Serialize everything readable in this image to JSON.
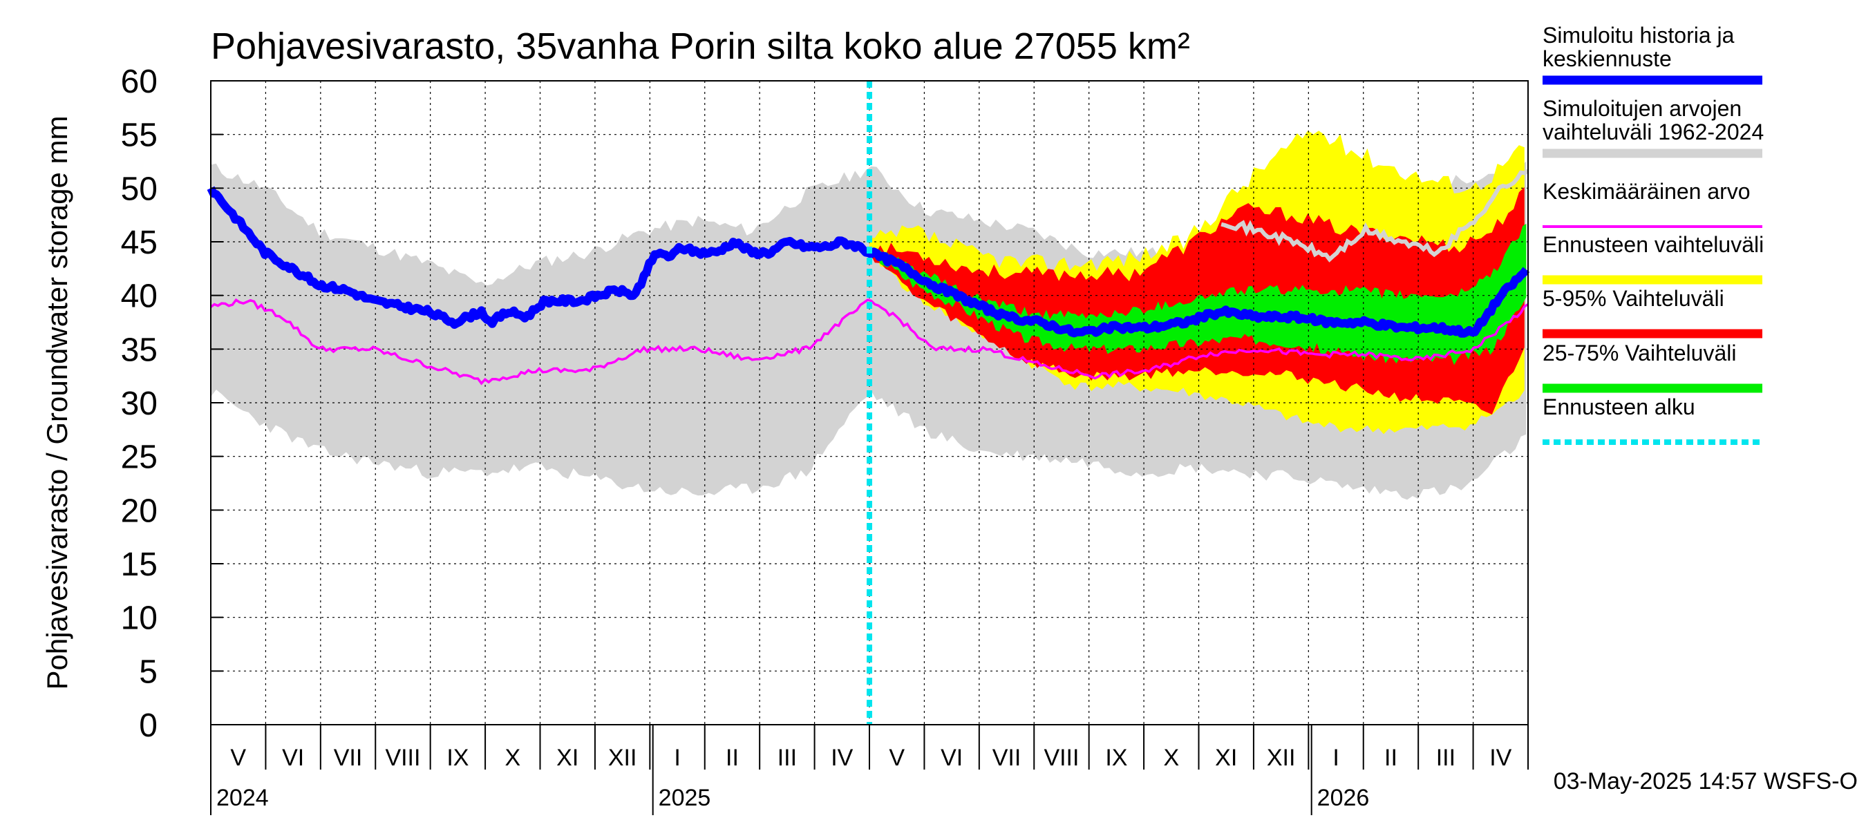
{
  "chart_data": {
    "type": "area",
    "title": "Pohjavesivarasto, 35vanha Porin silta koko alue 27055 km²",
    "ylabel": "Pohjavesivarasto / Groundwater storage   mm",
    "ylim": [
      0,
      60
    ],
    "yticks": [
      0,
      5,
      10,
      15,
      20,
      25,
      30,
      35,
      40,
      45,
      50,
      55,
      60
    ],
    "xlim_days": [
      0,
      730
    ],
    "month_labels": [
      "V",
      "VI",
      "VII",
      "VIII",
      "IX",
      "X",
      "XI",
      "XII",
      "I",
      "II",
      "III",
      "IV",
      "V",
      "VI",
      "VII",
      "VIII",
      "IX",
      "X",
      "XI",
      "XII",
      "I",
      "II",
      "III",
      "IV"
    ],
    "year_labels": [
      {
        "text": "2024",
        "day": 0
      },
      {
        "text": "2025",
        "day": 245
      },
      {
        "text": "2026",
        "day": 610
      }
    ],
    "forecast_start_day": 365,
    "timestamp": "03-May-2025 14:57 WSFS-O",
    "legend": [
      {
        "label": [
          "Simuloitu historia ja",
          "keskiennuste"
        ],
        "color": "#0000ff",
        "style": "thick"
      },
      {
        "label": [
          "Simuloitujen arvojen",
          "vaihteluväli 1962-2024"
        ],
        "color": "#d3d3d3",
        "style": "thick"
      },
      {
        "label": [
          "Keskimääräinen arvo"
        ],
        "color": "#ff00ff",
        "style": "thin"
      },
      {
        "label": [
          "Ennusteen vaihteluväli"
        ],
        "color": "#ffff00",
        "style": "thick"
      },
      {
        "label": [
          "5-95% Vaihteluväli"
        ],
        "color": "#ff0000",
        "style": "thick"
      },
      {
        "label": [
          "25-75% Vaihteluväli"
        ],
        "color": "#00ee00",
        "style": "thick"
      },
      {
        "label": [
          "Ennusteen alku"
        ],
        "color": "#00e5ee",
        "style": "dashed"
      }
    ],
    "series": {
      "hist_range": {
        "name": "Simuloitujen arvojen vaihteluväli 1962-2024",
        "x": [
          0,
          30,
          60,
          90,
          120,
          150,
          180,
          210,
          240,
          270,
          300,
          330,
          360,
          365,
          395,
          425,
          455,
          485,
          515,
          545,
          575,
          605,
          635,
          665,
          695,
          730
        ],
        "upper": [
          52,
          50,
          46,
          44.5,
          43,
          41,
          43,
          44,
          46,
          47,
          46,
          49.5,
          51.5,
          52,
          48,
          47,
          46,
          44,
          44,
          44,
          46,
          47,
          48,
          49,
          51,
          52
        ],
        "lower": [
          31,
          28,
          25.5,
          24.5,
          23.5,
          23.5,
          24,
          23,
          22,
          21.5,
          22,
          23.5,
          30,
          31,
          27.5,
          25.5,
          25,
          24.5,
          23.5,
          24,
          23.5,
          23,
          22,
          21.5,
          22,
          27
        ]
      },
      "mean": {
        "name": "Keskimääräinen arvo",
        "x": [
          0,
          20,
          40,
          60,
          90,
          120,
          150,
          180,
          210,
          240,
          270,
          300,
          330,
          345,
          365,
          380,
          400,
          430,
          460,
          490,
          520,
          550,
          580,
          610,
          640,
          670,
          700,
          730
        ],
        "values": [
          39,
          39.5,
          38,
          35,
          35,
          33.5,
          32,
          33,
          33,
          35,
          35,
          34,
          35,
          37,
          39.5,
          38,
          35,
          35,
          33.5,
          32.5,
          33,
          34.5,
          35,
          34.5,
          34.5,
          34,
          35,
          39
        ]
      },
      "forecast_max": {
        "name": "Ennusteen vaihteluväli",
        "x": [
          365,
          390,
          420,
          450,
          480,
          510,
          540,
          570,
          590,
          600,
          610,
          640,
          670,
          700,
          730
        ],
        "upper": [
          45,
          46,
          44,
          43,
          43,
          43.5,
          45,
          50,
          53,
          54,
          55.5,
          53,
          51,
          50,
          54
        ],
        "lower": [
          44,
          40,
          37,
          34,
          31.5,
          31.5,
          31,
          30,
          29,
          28.5,
          28,
          27.5,
          27.5,
          28,
          31
        ]
      },
      "p5_95": {
        "name": "5-95% Vaihteluväli",
        "x": [
          365,
          390,
          420,
          450,
          480,
          510,
          540,
          570,
          600,
          630,
          660,
          690,
          710,
          730
        ],
        "upper": [
          44.5,
          44,
          42.5,
          42,
          42,
          42,
          44.5,
          48,
          47.5,
          46,
          45.5,
          44.5,
          46,
          50
        ],
        "lower": [
          44,
          40,
          37,
          34,
          32.5,
          32.5,
          33,
          33,
          32.5,
          31.5,
          30.5,
          30,
          29,
          36
        ]
      },
      "p25_75": {
        "name": "25-75% Vaihteluväli",
        "x": [
          365,
          390,
          420,
          450,
          480,
          510,
          540,
          570,
          600,
          630,
          660,
          690,
          710,
          730
        ],
        "upper": [
          44.3,
          42.5,
          40,
          38.5,
          38,
          38.5,
          39.5,
          40.5,
          40.5,
          40.5,
          40,
          40,
          42,
          47
        ],
        "lower": [
          44,
          41,
          38.5,
          36,
          35,
          35,
          35.5,
          36,
          35.5,
          34.5,
          34,
          34,
          35,
          40
        ]
      },
      "history_and_forecast": {
        "name": "Simuloitu historia ja keskiennuste",
        "x": [
          0,
          15,
          30,
          45,
          60,
          75,
          90,
          105,
          120,
          135,
          150,
          155,
          165,
          175,
          185,
          195,
          205,
          215,
          225,
          235,
          245,
          250,
          255,
          260,
          270,
          280,
          290,
          300,
          310,
          320,
          330,
          340,
          350,
          360,
          365,
          380,
          400,
          420,
          440,
          460,
          480,
          500,
          520,
          540,
          560,
          580,
          600,
          620,
          640,
          660,
          680,
          700,
          715,
          730
        ],
        "values": [
          50,
          47,
          44,
          42.5,
          41,
          40.5,
          39.5,
          39,
          38.5,
          37.5,
          38.5,
          37.5,
          38.5,
          38,
          39.5,
          39.5,
          39.5,
          40,
          40.5,
          40,
          43.5,
          44,
          43.5,
          44.5,
          44,
          44,
          45,
          44,
          44,
          45,
          44.5,
          44.5,
          45,
          44.5,
          44,
          43,
          41,
          39.5,
          38,
          37.5,
          36.5,
          37,
          37,
          37.5,
          38.5,
          38,
          38,
          37.5,
          37.5,
          37,
          37,
          36.5,
          40,
          42.5
        ]
      },
      "history_maximum": {
        "name": "Simuloitu maksimi (harmaa viiva)",
        "x": [
          560,
          580,
          600,
          620,
          640,
          660,
          680,
          700,
          715,
          730
        ],
        "values": [
          47,
          46,
          45,
          43.5,
          46,
          45,
          44,
          47,
          50,
          51.5
        ]
      }
    }
  }
}
